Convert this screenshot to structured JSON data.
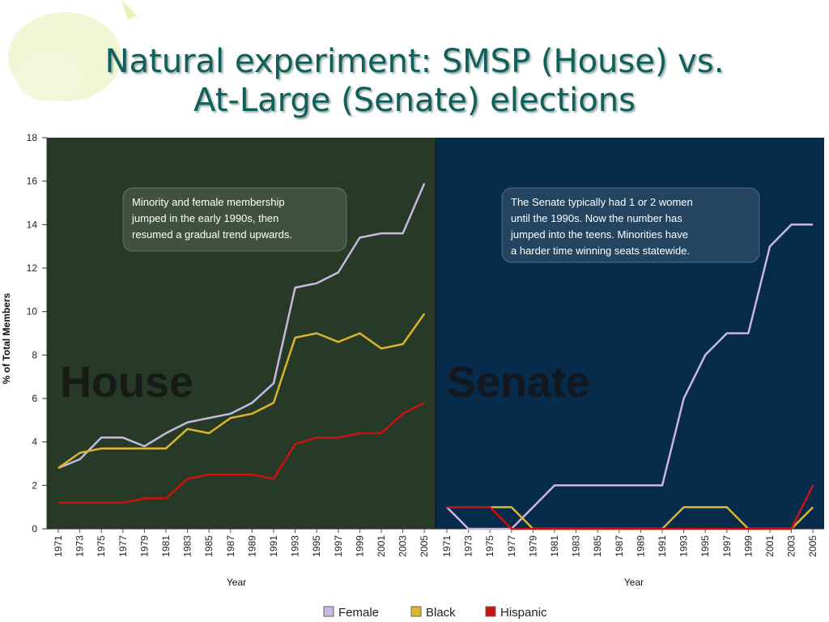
{
  "slide": {
    "title_line1": "Natural experiment: SMSP (House) vs.",
    "title_line2": "At-Large (Senate) elections"
  },
  "colors": {
    "house_bg": "#263a27",
    "senate_bg": "#072b4b",
    "female": "#c6b8de",
    "black": "#dcb52c",
    "hispanic": "#cc1111",
    "title": "#0f5f5a"
  },
  "chart_data": [
    {
      "type": "line",
      "panel_label": "House",
      "ylabel": "% of Total Members",
      "xlabel": "Year",
      "ylim": [
        0,
        18
      ],
      "yticks": [
        0,
        2,
        4,
        6,
        8,
        10,
        12,
        14,
        16,
        18
      ],
      "x": [
        "1971",
        "1973",
        "1975",
        "1977",
        "1979",
        "1981",
        "1983",
        "1985",
        "1987",
        "1989",
        "1991",
        "1993",
        "1995",
        "1997",
        "1999",
        "2001",
        "2003",
        "2005"
      ],
      "series": [
        {
          "name": "Female",
          "color": "#c6b8de",
          "values": [
            2.8,
            3.2,
            4.2,
            4.2,
            3.8,
            4.4,
            4.9,
            5.1,
            5.3,
            5.8,
            6.7,
            11.1,
            11.3,
            11.8,
            13.4,
            13.6,
            13.6,
            15.9
          ]
        },
        {
          "name": "Black",
          "color": "#dcb52c",
          "values": [
            2.8,
            3.5,
            3.7,
            3.7,
            3.7,
            3.7,
            4.6,
            4.4,
            5.1,
            5.3,
            5.8,
            8.8,
            9.0,
            8.6,
            9.0,
            8.3,
            8.5,
            9.9
          ]
        },
        {
          "name": "Hispanic",
          "color": "#cc1111",
          "values": [
            1.2,
            1.2,
            1.2,
            1.2,
            1.4,
            1.4,
            2.3,
            2.5,
            2.5,
            2.5,
            2.3,
            3.9,
            4.2,
            4.2,
            4.4,
            4.4,
            5.3,
            5.8
          ]
        }
      ],
      "annotation": [
        "Minority and female membership",
        "jumped in the early 1990s, then",
        "resumed a gradual trend upwards."
      ]
    },
    {
      "type": "line",
      "panel_label": "Senate",
      "xlabel": "Year",
      "ylim": [
        0,
        18
      ],
      "x": [
        "1971",
        "1973",
        "1975",
        "1977",
        "1979",
        "1981",
        "1983",
        "1985",
        "1987",
        "1989",
        "1991",
        "1993",
        "1995",
        "1997",
        "1999",
        "2001",
        "2003",
        "2005"
      ],
      "series": [
        {
          "name": "Female",
          "color": "#c6b8de",
          "values": [
            1,
            0,
            0,
            0,
            1,
            2,
            2,
            2,
            2,
            2,
            2,
            6,
            8,
            9,
            9,
            13,
            14,
            14
          ]
        },
        {
          "name": "Black",
          "color": "#dcb52c",
          "values": [
            1,
            1,
            1,
            1,
            0,
            0,
            0,
            0,
            0,
            0,
            0,
            1,
            1,
            1,
            0,
            0,
            0,
            1
          ]
        },
        {
          "name": "Hispanic",
          "color": "#cc1111",
          "values": [
            1,
            1,
            1,
            0,
            0,
            0,
            0,
            0,
            0,
            0,
            0,
            0,
            0,
            0,
            0,
            0,
            0,
            2
          ]
        }
      ],
      "annotation": [
        "The Senate typically had 1 or 2 women",
        "until the 1990s. Now the number has",
        "jumped into the teens. Minorities have",
        "a harder time winning seats statewide."
      ]
    }
  ],
  "legend": {
    "placement": "bottom-center",
    "items": [
      {
        "label": "Female",
        "color": "#c6b8de"
      },
      {
        "label": "Black",
        "color": "#dcb52c"
      },
      {
        "label": "Hispanic",
        "color": "#cc1111"
      }
    ]
  }
}
